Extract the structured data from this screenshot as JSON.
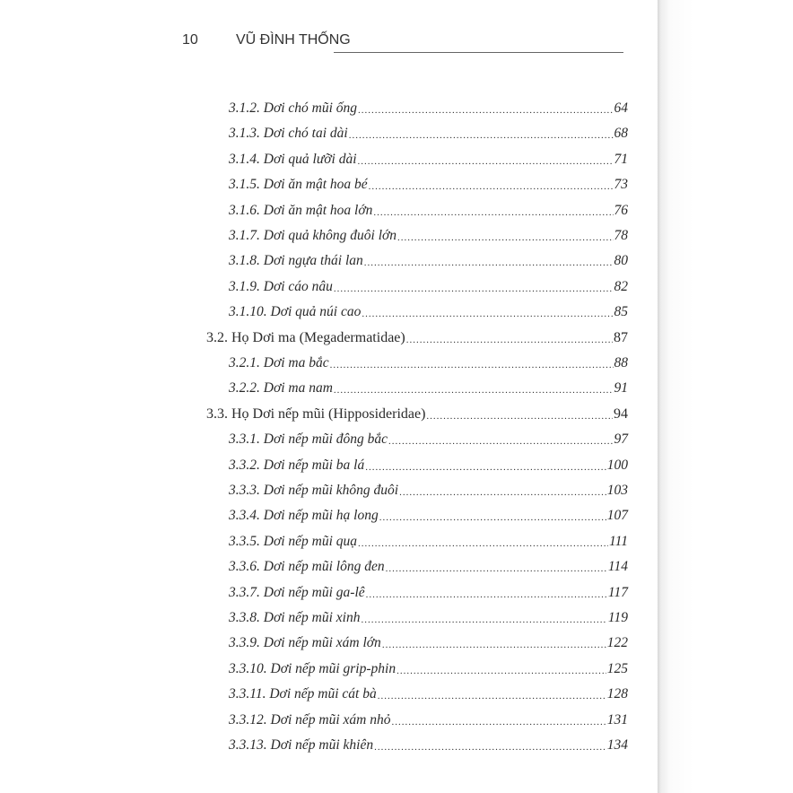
{
  "header": {
    "page_number": "10",
    "author": "VŨ ĐÌNH THỐNG"
  },
  "toc": [
    {
      "level": 2,
      "label": "3.1.2. Dơi chó mũi ống",
      "page": "64"
    },
    {
      "level": 2,
      "label": "3.1.3. Dơi chó tai dài",
      "page": "68"
    },
    {
      "level": 2,
      "label": "3.1.4. Dơi quả lưỡi dài",
      "page": "71"
    },
    {
      "level": 2,
      "label": "3.1.5. Dơi ăn mật hoa bé",
      "page": "73"
    },
    {
      "level": 2,
      "label": "3.1.6. Dơi ăn mật hoa lớn",
      "page": "76"
    },
    {
      "level": 2,
      "label": "3.1.7. Dơi quả không đuôi lớn",
      "page": "78"
    },
    {
      "level": 2,
      "label": "3.1.8. Dơi ngựa thái lan",
      "page": "80"
    },
    {
      "level": 2,
      "label": "3.1.9. Dơi cáo nâu",
      "page": "82"
    },
    {
      "level": 2,
      "label": "3.1.10. Dơi quả núi cao",
      "page": "85"
    },
    {
      "level": 1,
      "label": "3.2. Họ Dơi ma (Megadermatidae)",
      "page": "87"
    },
    {
      "level": 2,
      "label": "3.2.1. Dơi ma bắc",
      "page": "88"
    },
    {
      "level": 2,
      "label": "3.2.2. Dơi ma nam",
      "page": "91"
    },
    {
      "level": 1,
      "label": "3.3. Họ Dơi nếp mũi (Hipposideridae)",
      "page": "94"
    },
    {
      "level": 2,
      "label": "3.3.1. Dơi nếp mũi đông bắc",
      "page": "97"
    },
    {
      "level": 2,
      "label": "3.3.2. Dơi nếp mũi ba lá",
      "page": "100"
    },
    {
      "level": 2,
      "label": "3.3.3. Dơi nếp mũi không đuôi",
      "page": "103"
    },
    {
      "level": 2,
      "label": "3.3.4. Dơi nếp mũi hạ long",
      "page": "107"
    },
    {
      "level": 2,
      "label": "3.3.5. Dơi nếp mũi quạ",
      "page": "111"
    },
    {
      "level": 2,
      "label": "3.3.6. Dơi nếp mũi lông đen",
      "page": "114"
    },
    {
      "level": 2,
      "label": "3.3.7. Dơi nếp mũi ga-lê",
      "page": "117"
    },
    {
      "level": 2,
      "label": "3.3.8. Dơi nếp mũi xinh",
      "page": "119"
    },
    {
      "level": 2,
      "label": "3.3.9. Dơi nếp mũi xám lớn",
      "page": "122"
    },
    {
      "level": 2,
      "label": "3.3.10. Dơi nếp mũi grip-phin",
      "page": "125"
    },
    {
      "level": 2,
      "label": "3.3.11. Dơi nếp mũi cát bà",
      "page": "128"
    },
    {
      "level": 2,
      "label": "3.3.12. Dơi nếp mũi xám nhỏ",
      "page": "131"
    },
    {
      "level": 2,
      "label": "3.3.13. Dơi nếp mũi khiên",
      "page": "134"
    }
  ]
}
